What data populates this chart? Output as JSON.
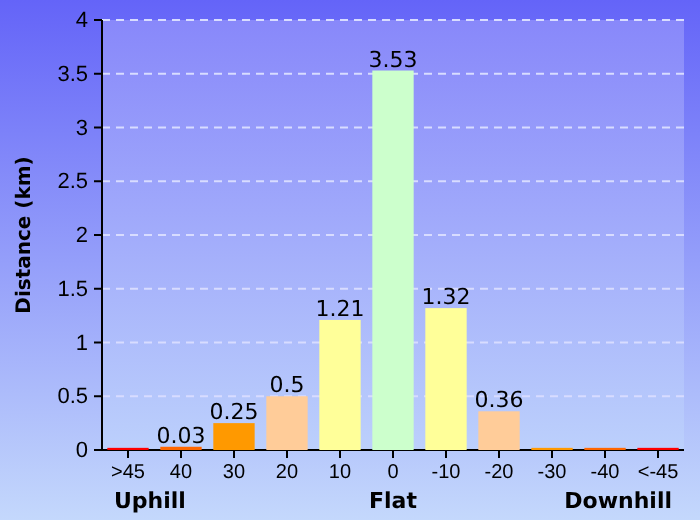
{
  "chart_data": {
    "type": "bar",
    "ylabel": "Distance (km)",
    "categories": [
      ">45",
      "40",
      "30",
      "20",
      "10",
      "0",
      "-10",
      "-20",
      "-30",
      "-40",
      "<-45"
    ],
    "values": [
      0.02,
      0.03,
      0.25,
      0.5,
      1.21,
      3.53,
      1.32,
      0.36,
      0.02,
      0.02,
      0.02
    ],
    "value_labels": [
      null,
      "0.03",
      "0.25",
      "0.5",
      "1.21",
      "3.53",
      "1.32",
      "0.36",
      null,
      null,
      null
    ],
    "colors": [
      "#ff0000",
      "#ff6600",
      "#ff9900",
      "#ffcc99",
      "#ffff99",
      "#ccffcc",
      "#ffff99",
      "#ffcc99",
      "#ff9900",
      "#ff6600",
      "#ff0000"
    ],
    "ylim": [
      0,
      4
    ],
    "yticks": [
      0,
      0.5,
      1,
      1.5,
      2,
      2.5,
      3,
      3.5,
      4
    ],
    "grid": "y",
    "annotations": [
      "Uphill",
      "Flat",
      "Downhill"
    ]
  }
}
